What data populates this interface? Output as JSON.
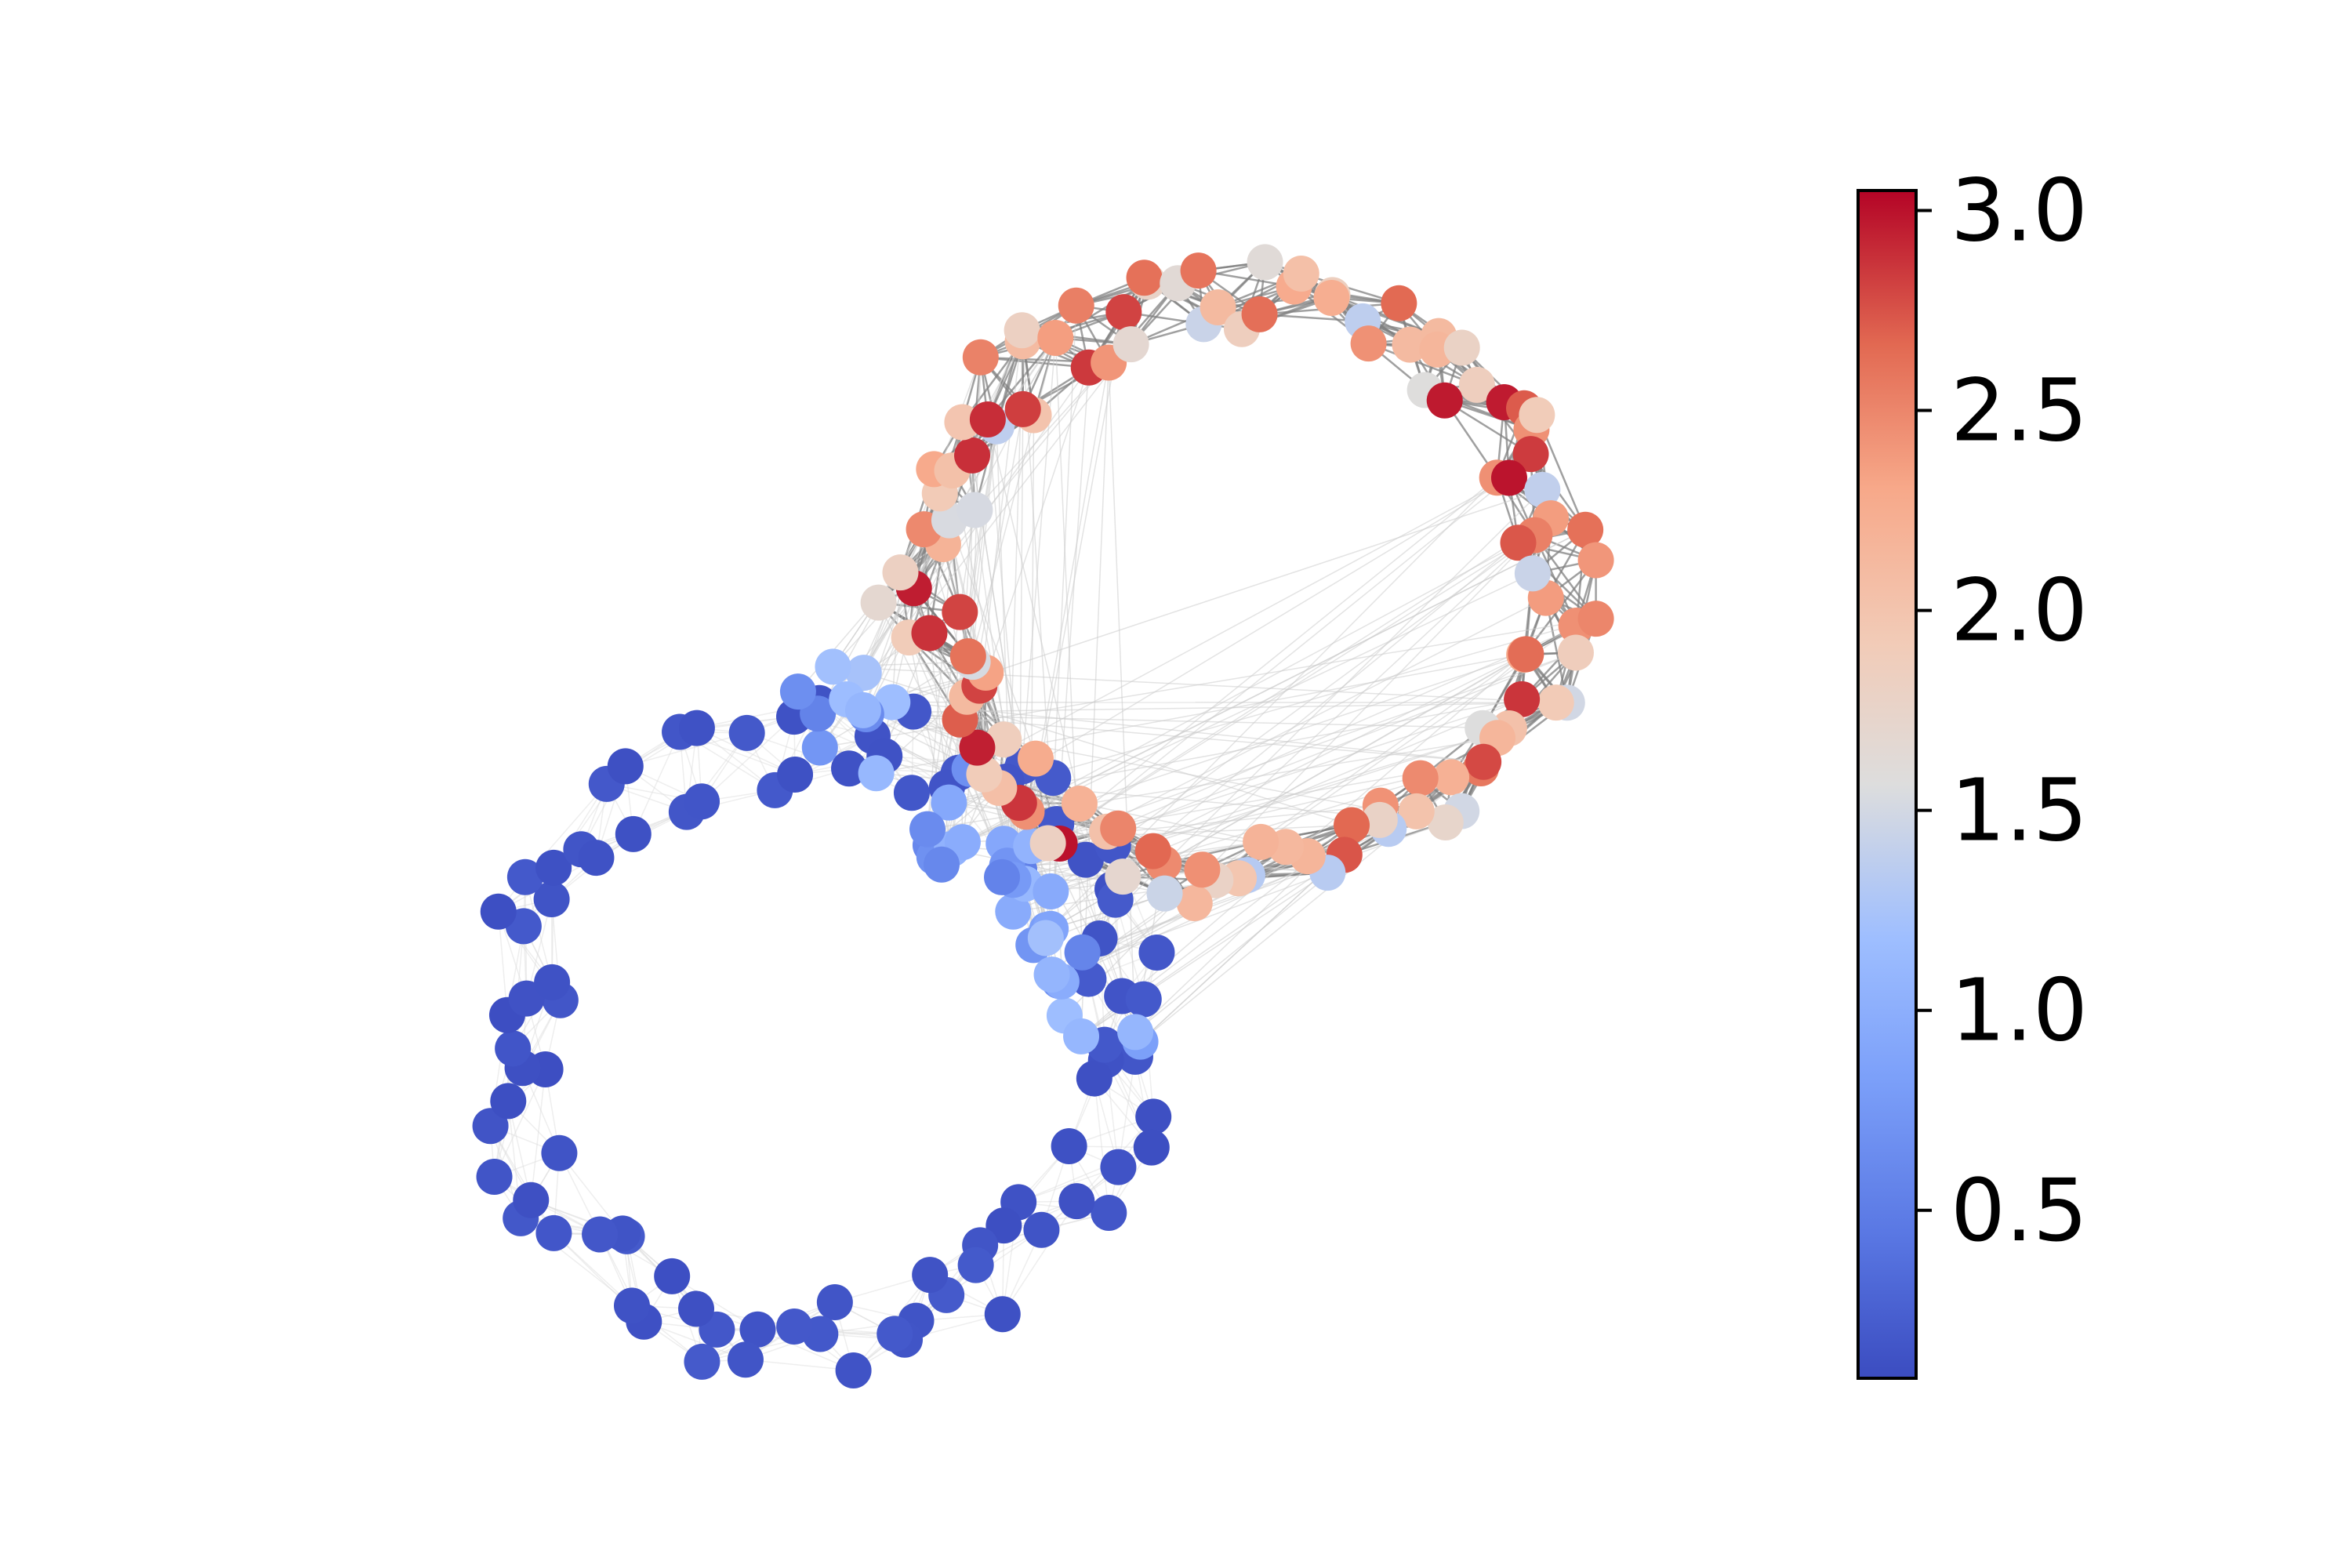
{
  "figure": {
    "type": "network-graph",
    "description_visible": false,
    "graph": {
      "clusters": [
        {
          "name": "",
          "shape": "ring",
          "node_count": 120,
          "value_range": [
            1.3,
            3.0
          ],
          "edge_color": "#808080",
          "edge_density": "dense"
        },
        {
          "name": "",
          "shape": "ring",
          "node_count": 90,
          "value_range": [
            0.1,
            0.2
          ],
          "edge_color": "#d9d9d9",
          "edge_density": "sparse"
        },
        {
          "name": "",
          "shape": "bridge",
          "node_count": 40,
          "value_range": [
            0.5,
            1.3
          ],
          "edge_color": "#cccccc",
          "edge_density": "medium"
        }
      ]
    },
    "colorbar": {
      "colormap": "coolwarm",
      "min": 0.08,
      "max": 3.05,
      "ticks": [
        0.5,
        1.0,
        1.5,
        2.0,
        2.5,
        3.0
      ],
      "tick_labels": [
        "0.5",
        "1.0",
        "1.5",
        "2.0",
        "2.5",
        "3.0"
      ],
      "colors": {
        "low": "#3b4cc0",
        "mid": "#dddddd",
        "high": "#b40426"
      }
    }
  }
}
